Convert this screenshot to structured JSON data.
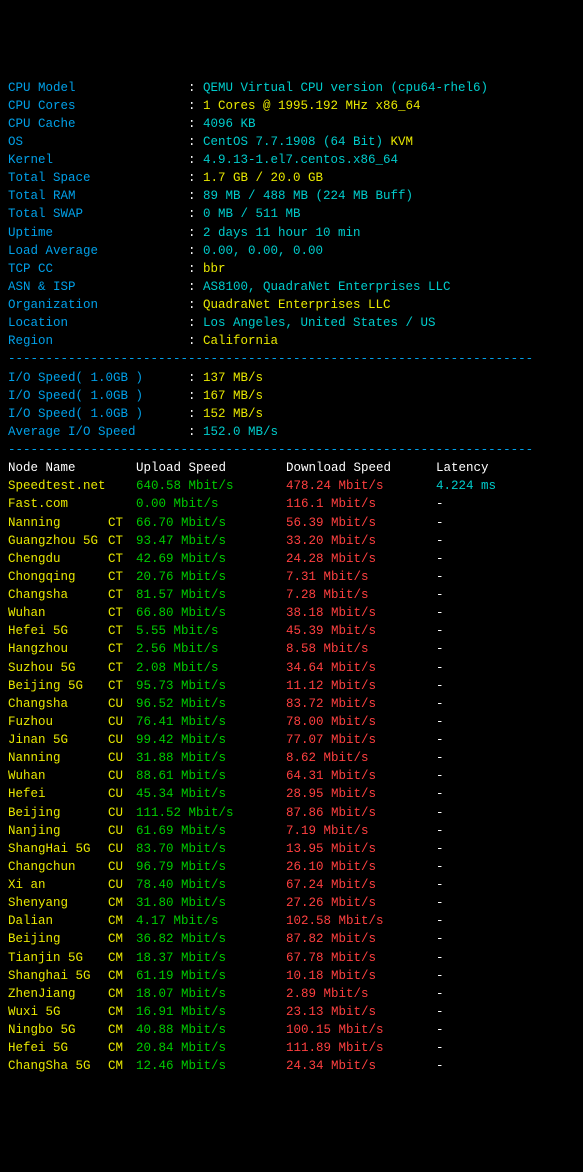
{
  "colors": {
    "bg": "#000000",
    "label": "#00a0e8",
    "teal": "#00cccc",
    "yellow": "#e8e800",
    "green": "#00cc00",
    "red": "#ff4040",
    "white": "#ffffff"
  },
  "sysinfo": [
    {
      "label": "CPU Model",
      "parts": [
        {
          "t": "QEMU Virtual CPU version (cpu64-rhel6)",
          "c": "teal"
        }
      ]
    },
    {
      "label": "CPU Cores",
      "parts": [
        {
          "t": "1 Cores @ 1995.192 MHz x86_64",
          "c": "yel"
        }
      ]
    },
    {
      "label": "CPU Cache",
      "parts": [
        {
          "t": "4096 KB",
          "c": "teal"
        }
      ]
    },
    {
      "label": "OS",
      "parts": [
        {
          "t": "CentOS 7.7.1908 (64 Bit) ",
          "c": "teal"
        },
        {
          "t": "KVM",
          "c": "yel"
        }
      ]
    },
    {
      "label": "Kernel",
      "parts": [
        {
          "t": "4.9.13-1.el7.centos.x86_64",
          "c": "teal"
        }
      ]
    },
    {
      "label": "Total Space",
      "parts": [
        {
          "t": "1.7 GB / 20.0 GB",
          "c": "yel"
        }
      ]
    },
    {
      "label": "Total RAM",
      "parts": [
        {
          "t": "89 MB / 488 MB (224 MB Buff)",
          "c": "teal"
        }
      ]
    },
    {
      "label": "Total SWAP",
      "parts": [
        {
          "t": "0 MB / 511 MB",
          "c": "teal"
        }
      ]
    },
    {
      "label": "Uptime",
      "parts": [
        {
          "t": "2 days 11 hour 10 min",
          "c": "teal"
        }
      ]
    },
    {
      "label": "Load Average",
      "parts": [
        {
          "t": "0.00, 0.00, 0.00",
          "c": "teal"
        }
      ]
    },
    {
      "label": "TCP CC",
      "parts": [
        {
          "t": "bbr",
          "c": "yel"
        }
      ]
    },
    {
      "label": "ASN & ISP",
      "parts": [
        {
          "t": "AS8100, QuadraNet Enterprises LLC",
          "c": "teal"
        }
      ]
    },
    {
      "label": "Organization",
      "parts": [
        {
          "t": "QuadraNet Enterprises LLC",
          "c": "yel"
        }
      ]
    },
    {
      "label": "Location",
      "parts": [
        {
          "t": "Los Angeles, United States / US",
          "c": "teal"
        }
      ]
    },
    {
      "label": "Region",
      "parts": [
        {
          "t": "California",
          "c": "yel"
        }
      ]
    }
  ],
  "io": [
    {
      "label": "I/O Speed( 1.0GB )",
      "value": "137 MB/s",
      "c": "yel"
    },
    {
      "label": "I/O Speed( 1.0GB )",
      "value": "167 MB/s",
      "c": "yel"
    },
    {
      "label": "I/O Speed( 1.0GB )",
      "value": "152 MB/s",
      "c": "yel"
    },
    {
      "label": "Average I/O Speed",
      "value": "152.0 MB/s",
      "c": "teal"
    }
  ],
  "speed_header": {
    "node": "Node Name",
    "up": "Upload Speed",
    "dn": "Download Speed",
    "lat": "Latency"
  },
  "speed": [
    {
      "node": "Speedtest.net",
      "isp": "",
      "up": "640.58 Mbit/s",
      "dn": "478.24 Mbit/s",
      "lat": "4.224 ms"
    },
    {
      "node": "Fast.com",
      "isp": "",
      "up": "0.00 Mbit/s",
      "dn": "116.1 Mbit/s",
      "lat": "-"
    },
    {
      "node": "Nanning",
      "isp": "CT",
      "up": "66.70 Mbit/s",
      "dn": "56.39 Mbit/s",
      "lat": "-"
    },
    {
      "node": "Guangzhou 5G",
      "isp": "CT",
      "up": "93.47 Mbit/s",
      "dn": "33.20 Mbit/s",
      "lat": "-"
    },
    {
      "node": "Chengdu",
      "isp": "CT",
      "up": "42.69 Mbit/s",
      "dn": "24.28 Mbit/s",
      "lat": "-"
    },
    {
      "node": "Chongqing",
      "isp": "CT",
      "up": "20.76 Mbit/s",
      "dn": "7.31 Mbit/s",
      "lat": "-"
    },
    {
      "node": "Changsha",
      "isp": "CT",
      "up": "81.57 Mbit/s",
      "dn": "7.28 Mbit/s",
      "lat": "-"
    },
    {
      "node": "Wuhan",
      "isp": "CT",
      "up": "66.80 Mbit/s",
      "dn": "38.18 Mbit/s",
      "lat": "-"
    },
    {
      "node": "Hefei 5G",
      "isp": "CT",
      "up": "5.55 Mbit/s",
      "dn": "45.39 Mbit/s",
      "lat": "-"
    },
    {
      "node": "Hangzhou",
      "isp": "CT",
      "up": "2.56 Mbit/s",
      "dn": "8.58 Mbit/s",
      "lat": "-"
    },
    {
      "node": "Suzhou 5G",
      "isp": "CT",
      "up": "2.08 Mbit/s",
      "dn": "34.64 Mbit/s",
      "lat": "-"
    },
    {
      "node": "Beijing 5G",
      "isp": "CT",
      "up": "95.73 Mbit/s",
      "dn": "11.12 Mbit/s",
      "lat": "-"
    },
    {
      "node": "Changsha",
      "isp": "CU",
      "up": "96.52 Mbit/s",
      "dn": "83.72 Mbit/s",
      "lat": "-"
    },
    {
      "node": "Fuzhou",
      "isp": "CU",
      "up": "76.41 Mbit/s",
      "dn": "78.00 Mbit/s",
      "lat": "-"
    },
    {
      "node": "Jinan 5G",
      "isp": "CU",
      "up": "99.42 Mbit/s",
      "dn": "77.07 Mbit/s",
      "lat": "-"
    },
    {
      "node": "Nanning",
      "isp": "CU",
      "up": "31.88 Mbit/s",
      "dn": "8.62 Mbit/s",
      "lat": "-"
    },
    {
      "node": "Wuhan",
      "isp": "CU",
      "up": "88.61 Mbit/s",
      "dn": "64.31 Mbit/s",
      "lat": "-"
    },
    {
      "node": "Hefei",
      "isp": "CU",
      "up": "45.34 Mbit/s",
      "dn": "28.95 Mbit/s",
      "lat": "-"
    },
    {
      "node": "Beijing",
      "isp": "CU",
      "up": "111.52 Mbit/s",
      "dn": "87.86 Mbit/s",
      "lat": "-"
    },
    {
      "node": "Nanjing",
      "isp": "CU",
      "up": "61.69 Mbit/s",
      "dn": "7.19 Mbit/s",
      "lat": "-"
    },
    {
      "node": "ShangHai 5G",
      "isp": "CU",
      "up": "83.70 Mbit/s",
      "dn": "13.95 Mbit/s",
      "lat": "-"
    },
    {
      "node": "Changchun",
      "isp": "CU",
      "up": "96.79 Mbit/s",
      "dn": "26.10 Mbit/s",
      "lat": "-"
    },
    {
      "node": "Xi an",
      "isp": "CU",
      "up": "78.40 Mbit/s",
      "dn": "67.24 Mbit/s",
      "lat": "-"
    },
    {
      "node": "Shenyang",
      "isp": "CM",
      "up": "31.80 Mbit/s",
      "dn": "27.26 Mbit/s",
      "lat": "-"
    },
    {
      "node": "Dalian",
      "isp": "CM",
      "up": "4.17 Mbit/s",
      "dn": "102.58 Mbit/s",
      "lat": "-"
    },
    {
      "node": "Beijing",
      "isp": "CM",
      "up": "36.82 Mbit/s",
      "dn": "87.82 Mbit/s",
      "lat": "-"
    },
    {
      "node": "Tianjin 5G",
      "isp": "CM",
      "up": "18.37 Mbit/s",
      "dn": "67.78 Mbit/s",
      "lat": "-"
    },
    {
      "node": "Shanghai 5G",
      "isp": "CM",
      "up": "61.19 Mbit/s",
      "dn": "10.18 Mbit/s",
      "lat": "-"
    },
    {
      "node": "ZhenJiang",
      "isp": "CM",
      "up": "18.07 Mbit/s",
      "dn": "2.89 Mbit/s",
      "lat": "-"
    },
    {
      "node": "Wuxi 5G",
      "isp": "CM",
      "up": "16.91 Mbit/s",
      "dn": "23.13 Mbit/s",
      "lat": "-"
    },
    {
      "node": "Ningbo 5G",
      "isp": "CM",
      "up": "40.88 Mbit/s",
      "dn": "100.15 Mbit/s",
      "lat": "-"
    },
    {
      "node": "Hefei 5G",
      "isp": "CM",
      "up": "20.84 Mbit/s",
      "dn": "111.89 Mbit/s",
      "lat": "-"
    },
    {
      "node": "ChangSha 5G",
      "isp": "CM",
      "up": "12.46 Mbit/s",
      "dn": "24.34 Mbit/s",
      "lat": "-"
    }
  ],
  "divider": "----------------------------------------------------------------------"
}
